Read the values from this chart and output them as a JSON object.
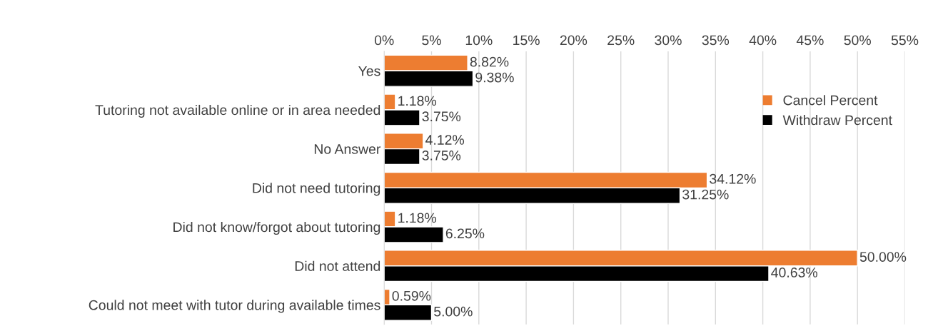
{
  "chart_data": {
    "type": "bar",
    "orientation": "horizontal",
    "categories": [
      "Yes",
      "Tutoring not available online or in area needed",
      "No Answer",
      "Did not need tutoring",
      "Did not know/forgot about tutoring",
      "Did not attend",
      "Could not meet with tutor during available times"
    ],
    "series": [
      {
        "name": "Cancel Percent",
        "color": "#ed7d31",
        "values": [
          8.82,
          1.18,
          4.12,
          34.12,
          1.18,
          50.0,
          0.59
        ],
        "value_labels": [
          "8.82%",
          "1.18%",
          "4.12%",
          "34.12%",
          "1.18%",
          "50.00%",
          "0.59%"
        ]
      },
      {
        "name": "Withdraw Percent",
        "color": "#000000",
        "values": [
          9.38,
          3.75,
          3.75,
          31.25,
          6.25,
          40.63,
          5.0
        ],
        "value_labels": [
          "9.38%",
          "3.75%",
          "3.75%",
          "31.25%",
          "6.25%",
          "40.63%",
          "5.00%"
        ]
      }
    ],
    "xlim": [
      0,
      55
    ],
    "xticks": [
      {
        "value": 0,
        "label": "0%"
      },
      {
        "value": 5,
        "label": "5%"
      },
      {
        "value": 10,
        "label": "10%"
      },
      {
        "value": 15,
        "label": "15%"
      },
      {
        "value": 20,
        "label": "20%"
      },
      {
        "value": 25,
        "label": "25%"
      },
      {
        "value": 30,
        "label": "30%"
      },
      {
        "value": 35,
        "label": "35%"
      },
      {
        "value": 40,
        "label": "40%"
      },
      {
        "value": 45,
        "label": "45%"
      },
      {
        "value": 50,
        "label": "50%"
      },
      {
        "value": 55,
        "label": "55%"
      }
    ],
    "grid": "x",
    "legend": "right"
  }
}
